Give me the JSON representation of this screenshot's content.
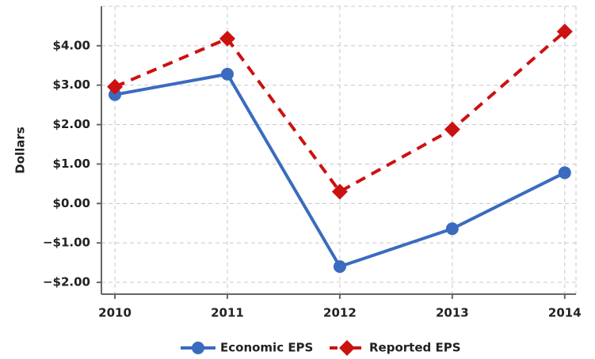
{
  "chart_data": {
    "type": "line",
    "y_label": "Dollars",
    "x": [
      2010,
      2011,
      2012,
      2013,
      2014
    ],
    "xlim": [
      2009.88,
      2014.1
    ],
    "xticks": [
      2010,
      2011,
      2012,
      2013,
      2014
    ],
    "ylim": [
      -2.3,
      5.0
    ],
    "yticks": [
      {
        "value": -2,
        "label": "−$2.00"
      },
      {
        "value": -1,
        "label": "−$1.00"
      },
      {
        "value": 0,
        "label": "$0.00"
      },
      {
        "value": 1,
        "label": "$1.00"
      },
      {
        "value": 2,
        "label": "$2.00"
      },
      {
        "value": 3,
        "label": "$3.00"
      },
      {
        "value": 4,
        "label": "$4.00"
      }
    ],
    "grid": true,
    "legend": "bottom",
    "series": [
      {
        "name": "Economic EPS",
        "color": "#3a6bbf",
        "marker": "circle",
        "dash": false,
        "values": [
          2.76,
          3.28,
          -1.6,
          -0.64,
          0.78
        ]
      },
      {
        "name": "Reported EPS",
        "color": "#cc1111",
        "marker": "diamond",
        "dash": true,
        "values": [
          2.96,
          4.18,
          0.3,
          1.88,
          4.36
        ]
      }
    ]
  }
}
